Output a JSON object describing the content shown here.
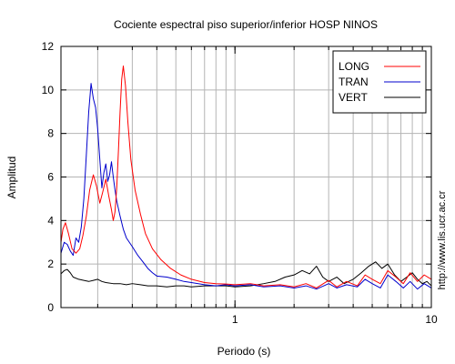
{
  "chart_data": {
    "type": "line",
    "title": "Cociente espectral piso superior/inferior  HOSP NINOS",
    "xlabel": "Periodo (s)",
    "ylabel": "Amplitud",
    "x_scale": "log",
    "xlim": [
      0.13,
      10
    ],
    "ylim": [
      0,
      12
    ],
    "x_ticks": [
      {
        "value": 1,
        "label": "1"
      },
      {
        "value": 10,
        "label": "10"
      }
    ],
    "y_ticks": [
      0,
      2,
      4,
      6,
      8,
      10,
      12
    ],
    "grid": true,
    "legend": "top-right",
    "side_note": "http://www.lis.ucr.ac.cr",
    "series": [
      {
        "name": "LONG",
        "color": "#ff0000",
        "points": [
          [
            0.13,
            3.0
          ],
          [
            0.133,
            3.6
          ],
          [
            0.137,
            3.9
          ],
          [
            0.142,
            3.4
          ],
          [
            0.148,
            2.7
          ],
          [
            0.155,
            2.5
          ],
          [
            0.162,
            2.7
          ],
          [
            0.168,
            3.3
          ],
          [
            0.175,
            4.2
          ],
          [
            0.182,
            5.4
          ],
          [
            0.19,
            6.1
          ],
          [
            0.197,
            5.6
          ],
          [
            0.205,
            4.8
          ],
          [
            0.212,
            5.3
          ],
          [
            0.22,
            5.9
          ],
          [
            0.228,
            5.1
          ],
          [
            0.235,
            4.5
          ],
          [
            0.24,
            4.0
          ],
          [
            0.245,
            4.4
          ],
          [
            0.25,
            5.5
          ],
          [
            0.255,
            7.2
          ],
          [
            0.26,
            9.0
          ],
          [
            0.265,
            10.5
          ],
          [
            0.27,
            11.1
          ],
          [
            0.277,
            10.2
          ],
          [
            0.285,
            8.5
          ],
          [
            0.295,
            6.8
          ],
          [
            0.31,
            5.4
          ],
          [
            0.33,
            4.3
          ],
          [
            0.35,
            3.4
          ],
          [
            0.38,
            2.7
          ],
          [
            0.42,
            2.2
          ],
          [
            0.47,
            1.8
          ],
          [
            0.53,
            1.5
          ],
          [
            0.6,
            1.3
          ],
          [
            0.7,
            1.15
          ],
          [
            0.8,
            1.1
          ],
          [
            0.9,
            1.08
          ],
          [
            1.0,
            1.05
          ],
          [
            1.2,
            1.1
          ],
          [
            1.4,
            1.0
          ],
          [
            1.7,
            1.05
          ],
          [
            2.0,
            0.95
          ],
          [
            2.3,
            1.1
          ],
          [
            2.6,
            0.9
          ],
          [
            3.0,
            1.25
          ],
          [
            3.3,
            0.95
          ],
          [
            3.7,
            1.2
          ],
          [
            4.2,
            1.0
          ],
          [
            4.6,
            1.5
          ],
          [
            5.0,
            1.3
          ],
          [
            5.5,
            1.1
          ],
          [
            6.0,
            1.7
          ],
          [
            6.6,
            1.4
          ],
          [
            7.2,
            1.1
          ],
          [
            7.8,
            1.6
          ],
          [
            8.5,
            1.2
          ],
          [
            9.2,
            1.5
          ],
          [
            10.0,
            1.3
          ]
        ]
      },
      {
        "name": "TRAN",
        "color": "#0000cc",
        "points": [
          [
            0.13,
            2.5
          ],
          [
            0.135,
            3.0
          ],
          [
            0.14,
            2.9
          ],
          [
            0.145,
            2.6
          ],
          [
            0.15,
            2.4
          ],
          [
            0.155,
            3.2
          ],
          [
            0.16,
            3.0
          ],
          [
            0.165,
            3.7
          ],
          [
            0.17,
            5.0
          ],
          [
            0.175,
            7.0
          ],
          [
            0.18,
            9.0
          ],
          [
            0.185,
            10.3
          ],
          [
            0.19,
            9.6
          ],
          [
            0.195,
            9.2
          ],
          [
            0.2,
            8.2
          ],
          [
            0.205,
            6.8
          ],
          [
            0.21,
            5.5
          ],
          [
            0.215,
            6.2
          ],
          [
            0.22,
            6.6
          ],
          [
            0.225,
            5.8
          ],
          [
            0.23,
            6.1
          ],
          [
            0.235,
            6.7
          ],
          [
            0.24,
            6.0
          ],
          [
            0.245,
            5.4
          ],
          [
            0.25,
            4.9
          ],
          [
            0.26,
            4.2
          ],
          [
            0.27,
            3.6
          ],
          [
            0.28,
            3.2
          ],
          [
            0.3,
            2.8
          ],
          [
            0.32,
            2.4
          ],
          [
            0.34,
            2.1
          ],
          [
            0.36,
            1.8
          ],
          [
            0.38,
            1.6
          ],
          [
            0.4,
            1.45
          ],
          [
            0.45,
            1.4
          ],
          [
            0.5,
            1.3
          ],
          [
            0.55,
            1.2
          ],
          [
            0.6,
            1.15
          ],
          [
            0.7,
            1.05
          ],
          [
            0.8,
            1.0
          ],
          [
            0.9,
            1.05
          ],
          [
            1.0,
            1.0
          ],
          [
            1.2,
            1.05
          ],
          [
            1.4,
            0.95
          ],
          [
            1.7,
            1.0
          ],
          [
            2.0,
            0.9
          ],
          [
            2.3,
            1.0
          ],
          [
            2.6,
            0.85
          ],
          [
            3.0,
            1.1
          ],
          [
            3.3,
            0.9
          ],
          [
            3.7,
            1.05
          ],
          [
            4.2,
            0.95
          ],
          [
            4.6,
            1.3
          ],
          [
            5.0,
            1.1
          ],
          [
            5.5,
            0.9
          ],
          [
            6.0,
            1.5
          ],
          [
            6.6,
            1.2
          ],
          [
            7.2,
            0.9
          ],
          [
            7.8,
            1.2
          ],
          [
            8.5,
            0.85
          ],
          [
            9.2,
            1.1
          ],
          [
            10.0,
            0.9
          ]
        ]
      },
      {
        "name": "VERT",
        "color": "#000000",
        "points": [
          [
            0.13,
            1.55
          ],
          [
            0.135,
            1.7
          ],
          [
            0.14,
            1.75
          ],
          [
            0.145,
            1.6
          ],
          [
            0.15,
            1.4
          ],
          [
            0.16,
            1.3
          ],
          [
            0.17,
            1.25
          ],
          [
            0.18,
            1.2
          ],
          [
            0.19,
            1.25
          ],
          [
            0.2,
            1.3
          ],
          [
            0.21,
            1.2
          ],
          [
            0.22,
            1.15
          ],
          [
            0.24,
            1.1
          ],
          [
            0.26,
            1.1
          ],
          [
            0.28,
            1.05
          ],
          [
            0.3,
            1.1
          ],
          [
            0.33,
            1.05
          ],
          [
            0.36,
            1.0
          ],
          [
            0.4,
            1.0
          ],
          [
            0.45,
            0.95
          ],
          [
            0.5,
            1.0
          ],
          [
            0.55,
            1.0
          ],
          [
            0.6,
            0.95
          ],
          [
            0.7,
            1.0
          ],
          [
            0.8,
            1.0
          ],
          [
            0.9,
            1.0
          ],
          [
            1.0,
            0.95
          ],
          [
            1.2,
            1.0
          ],
          [
            1.4,
            1.1
          ],
          [
            1.6,
            1.2
          ],
          [
            1.8,
            1.4
          ],
          [
            2.0,
            1.5
          ],
          [
            2.2,
            1.7
          ],
          [
            2.4,
            1.55
          ],
          [
            2.6,
            1.9
          ],
          [
            2.8,
            1.4
          ],
          [
            3.0,
            1.2
          ],
          [
            3.3,
            1.4
          ],
          [
            3.6,
            1.1
          ],
          [
            4.0,
            1.3
          ],
          [
            4.4,
            1.6
          ],
          [
            4.8,
            1.9
          ],
          [
            5.2,
            2.1
          ],
          [
            5.6,
            1.8
          ],
          [
            6.0,
            2.0
          ],
          [
            6.5,
            1.5
          ],
          [
            7.0,
            1.2
          ],
          [
            7.5,
            1.4
          ],
          [
            8.0,
            1.6
          ],
          [
            8.5,
            1.3
          ],
          [
            9.0,
            1.1
          ],
          [
            9.5,
            1.2
          ],
          [
            10.0,
            1.0
          ]
        ]
      }
    ]
  }
}
